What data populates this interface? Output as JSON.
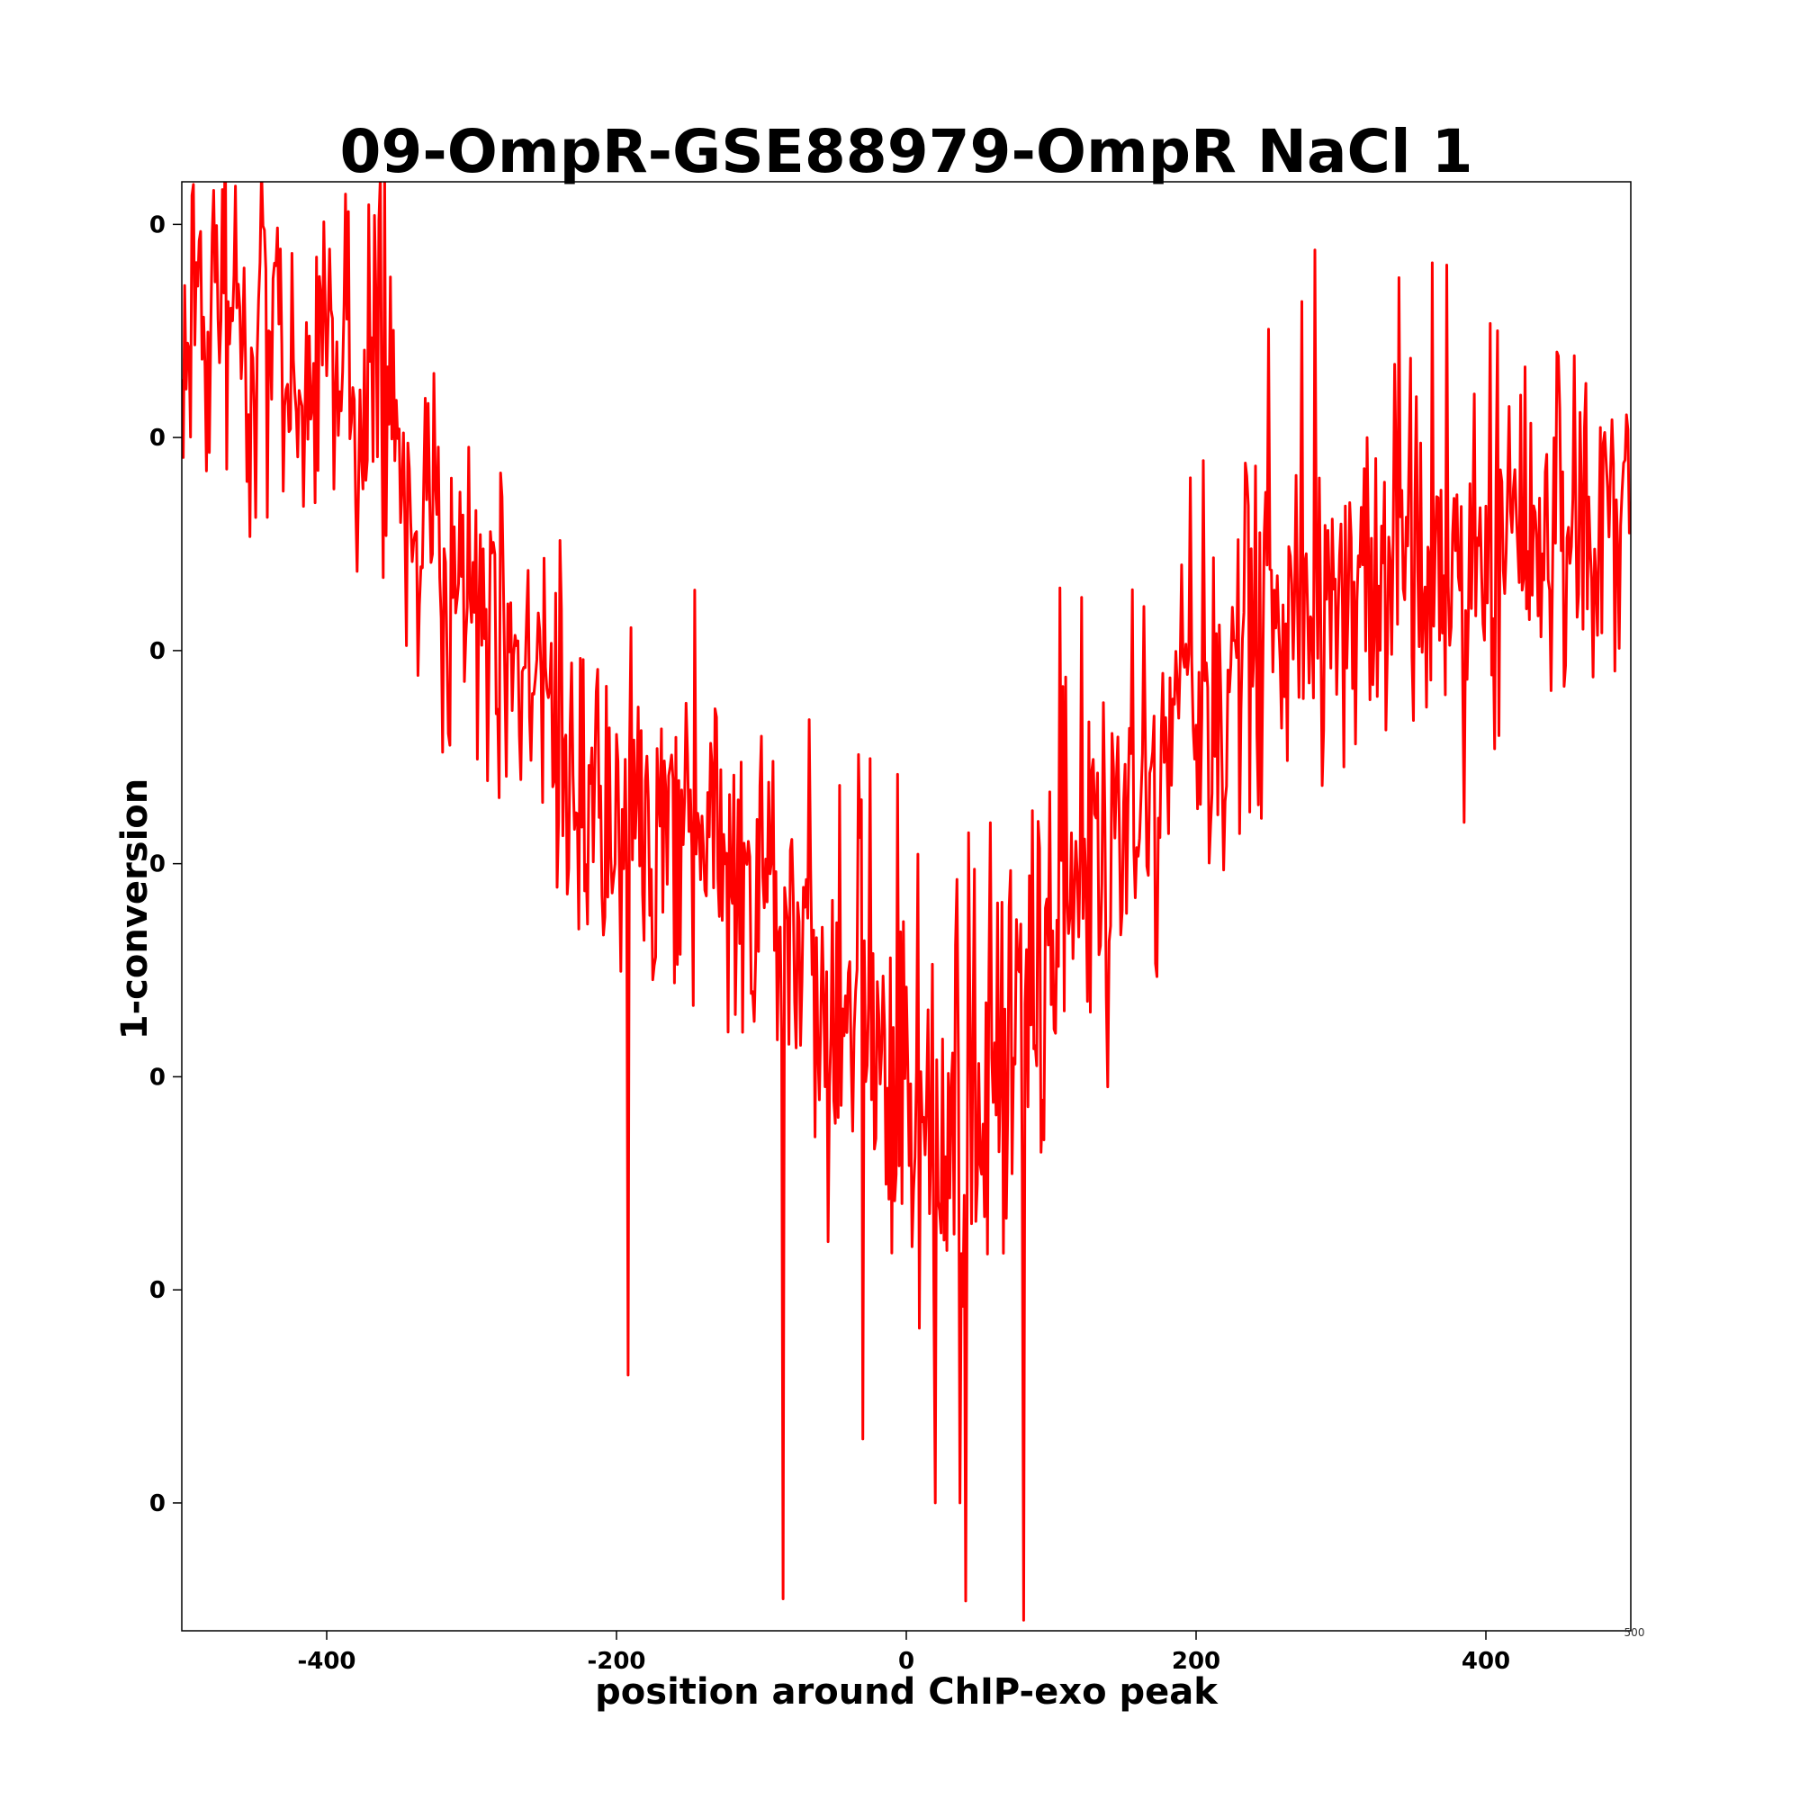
{
  "chart_data": {
    "type": "line",
    "title": "09-OmpR-GSE88979-OmpR NaCl 1",
    "xlabel": "position around ChIP-exo peak",
    "ylabel": "1-conversion",
    "xlim": [
      -500,
      500
    ],
    "ylim": [
      0.18,
      0.86
    ],
    "x_ticks": [
      -400,
      -200,
      0,
      200,
      400
    ],
    "x_tick_labels": [
      "-400",
      "-200",
      "0",
      "200",
      "400"
    ],
    "y_ticks": [
      0.24,
      0.34,
      0.44,
      0.54,
      0.64,
      0.74,
      0.84
    ],
    "y_tick_labels": [
      "0",
      "0",
      "0",
      "0",
      "0",
      "0",
      "0"
    ],
    "x_offset_label": "500",
    "grid": false,
    "legend": "none",
    "series": [
      {
        "color": "#ff0000",
        "trend_x": [
          -500,
          -450,
          -400,
          -360,
          -340,
          -300,
          -250,
          -200,
          -150,
          -100,
          -50,
          0,
          30,
          60,
          100,
          150,
          200,
          250,
          300,
          350,
          400,
          450,
          500
        ],
        "trend_y": [
          0.79,
          0.78,
          0.77,
          0.765,
          0.7,
          0.67,
          0.6,
          0.55,
          0.55,
          0.53,
          0.47,
          0.44,
          0.42,
          0.46,
          0.51,
          0.57,
          0.62,
          0.66,
          0.67,
          0.68,
          0.69,
          0.71,
          0.72
        ],
        "min_points": [
          [
            -85,
            0.195
          ],
          [
            81,
            0.185
          ],
          [
            41,
            0.194
          ],
          [
            37,
            0.24
          ],
          [
            20,
            0.24
          ],
          [
            -192,
            0.3
          ],
          [
            -30,
            0.27
          ]
        ],
        "max_points": [
          [
            -463,
            0.858
          ],
          [
            -385,
            0.846
          ],
          [
            282,
            0.828
          ],
          [
            -478,
            0.856
          ],
          [
            363,
            0.822
          ],
          [
            340,
            0.815
          ]
        ]
      }
    ]
  }
}
